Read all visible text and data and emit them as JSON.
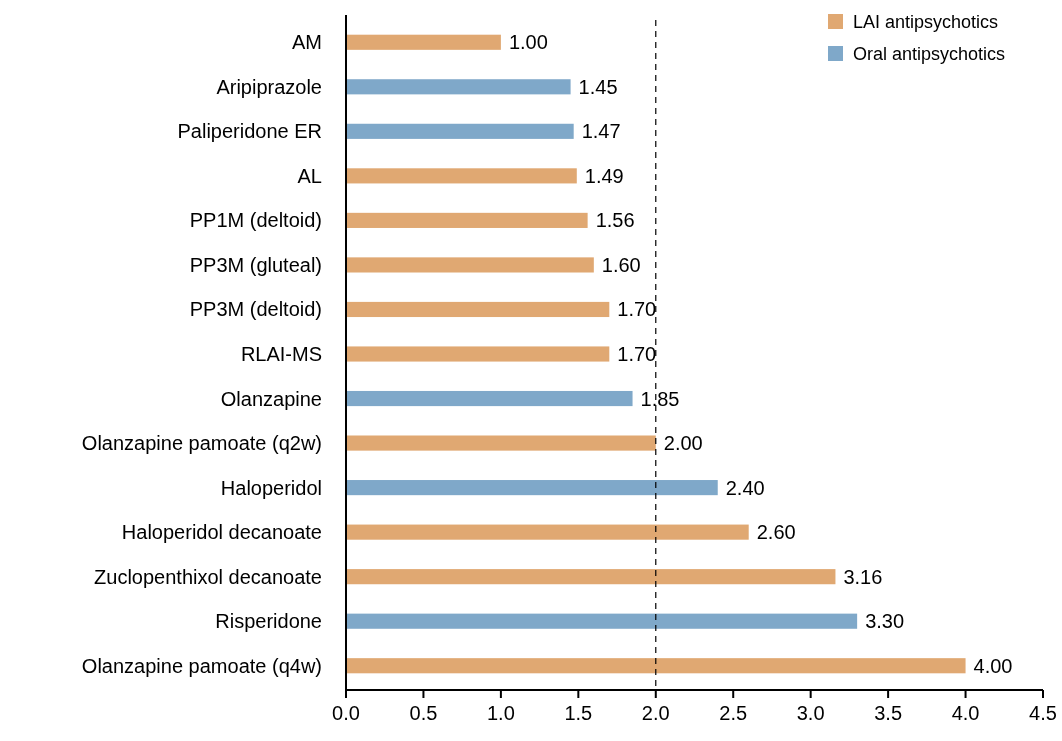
{
  "chart_data": {
    "type": "bar",
    "orientation": "horizontal",
    "categories": [
      "AM",
      "Aripiprazole",
      "Paliperidone ER",
      "AL",
      "PP1M (deltoid)",
      "PP3M (gluteal)",
      "PP3M (deltoid)",
      "RLAI-MS",
      "Olanzapine",
      "Olanzapine pamoate (q2w)",
      "Haloperidol",
      "Haloperidol decanoate",
      "Zuclopenthixol decanoate",
      "Risperidone",
      "Olanzapine pamoate (q4w)"
    ],
    "series": [
      {
        "name": "LAI antipsychotics",
        "color": "#e0a872",
        "values": [
          1.0,
          null,
          null,
          1.49,
          1.56,
          1.6,
          1.7,
          1.7,
          null,
          2.0,
          null,
          2.6,
          3.16,
          null,
          4.0
        ],
        "value_labels": [
          "1.00",
          null,
          null,
          "1.49",
          "1.56",
          "1.60",
          "1.70",
          "1.70",
          null,
          "2.00",
          null,
          "2.60",
          "3.16",
          null,
          "4.00"
        ]
      },
      {
        "name": "Oral antipsychotics",
        "color": "#7fa8c9",
        "values": [
          null,
          1.45,
          1.47,
          null,
          null,
          null,
          null,
          null,
          1.85,
          null,
          2.4,
          null,
          null,
          3.3,
          null
        ],
        "value_labels": [
          null,
          "1.45",
          "1.47",
          null,
          null,
          null,
          null,
          null,
          "1.85",
          null,
          "2.40",
          null,
          null,
          "3.30",
          null
        ]
      }
    ],
    "xlim": [
      0,
      4.5
    ],
    "xticks": [
      {
        "value": 0,
        "label": "0.0"
      },
      {
        "value": 0.5,
        "label": "0.5"
      },
      {
        "value": 1,
        "label": "1.0"
      },
      {
        "value": 1.5,
        "label": "1.5"
      },
      {
        "value": 2,
        "label": "2.0"
      },
      {
        "value": 2.5,
        "label": "2.5"
      },
      {
        "value": 3,
        "label": "3.0"
      },
      {
        "value": 3.5,
        "label": "3.5"
      },
      {
        "value": 4,
        "label": "4.0"
      },
      {
        "value": 4.5,
        "label": "4.5"
      }
    ],
    "ref_lines": [
      {
        "axis": "x",
        "value": 2,
        "color": "#000000",
        "line_style": "dashed"
      }
    ],
    "legend": "top right",
    "grid": false
  }
}
